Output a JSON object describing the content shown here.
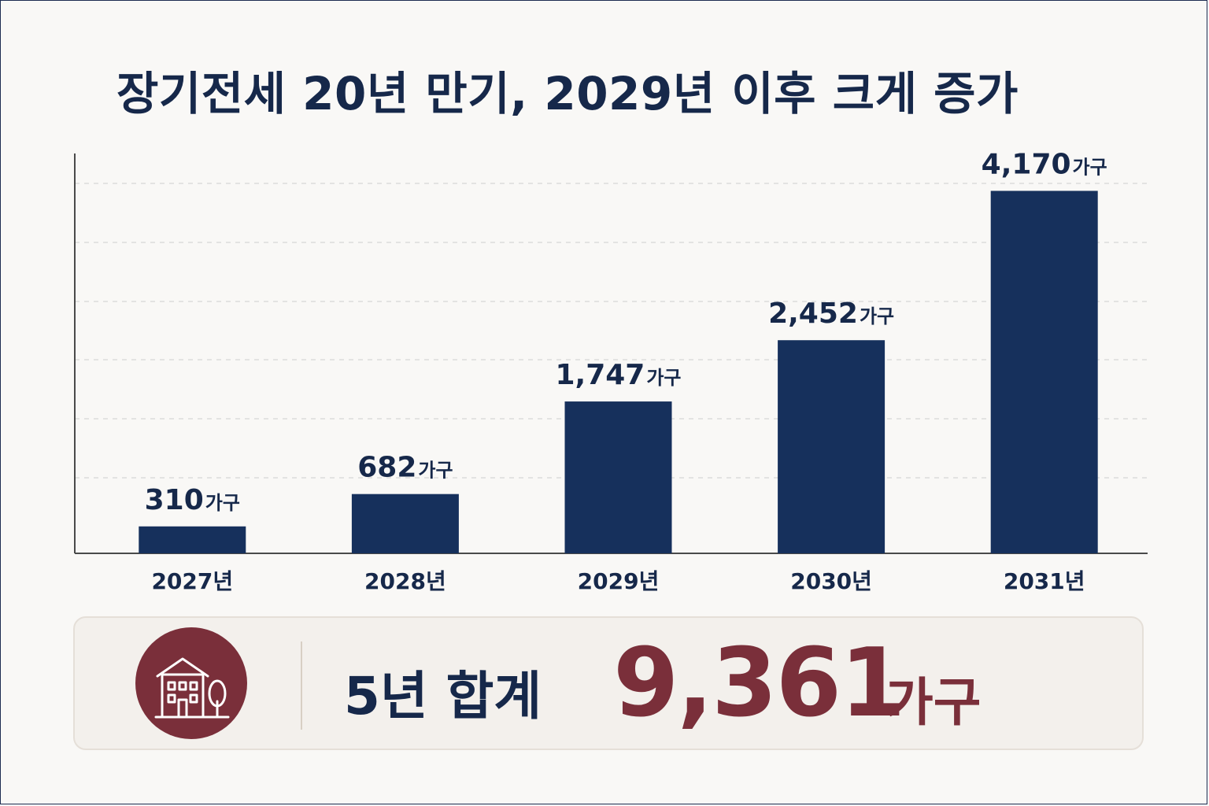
{
  "title": "장기전세 20년 만기, 2029년 이후 크게 증가",
  "colors": {
    "bar": "#16305c",
    "text": "#16284a",
    "accent": "#7a2f3a",
    "grid": "#d6d6d6",
    "axis": "#4a4a4a"
  },
  "chart_data": {
    "type": "bar",
    "categories": [
      "2027년",
      "2028년",
      "2029년",
      "2030년",
      "2031년"
    ],
    "values": [
      310,
      682,
      1747,
      2452,
      4170
    ],
    "value_unit": "가구",
    "data_labels": [
      "310",
      "682",
      "1,747",
      "2,452",
      "4,170"
    ],
    "ylim": [
      0,
      4600
    ],
    "grid": true,
    "legend": "none"
  },
  "summary": {
    "icon": "house-tree-icon",
    "label": "5년 합계",
    "value": "9,361",
    "unit": "가구"
  }
}
